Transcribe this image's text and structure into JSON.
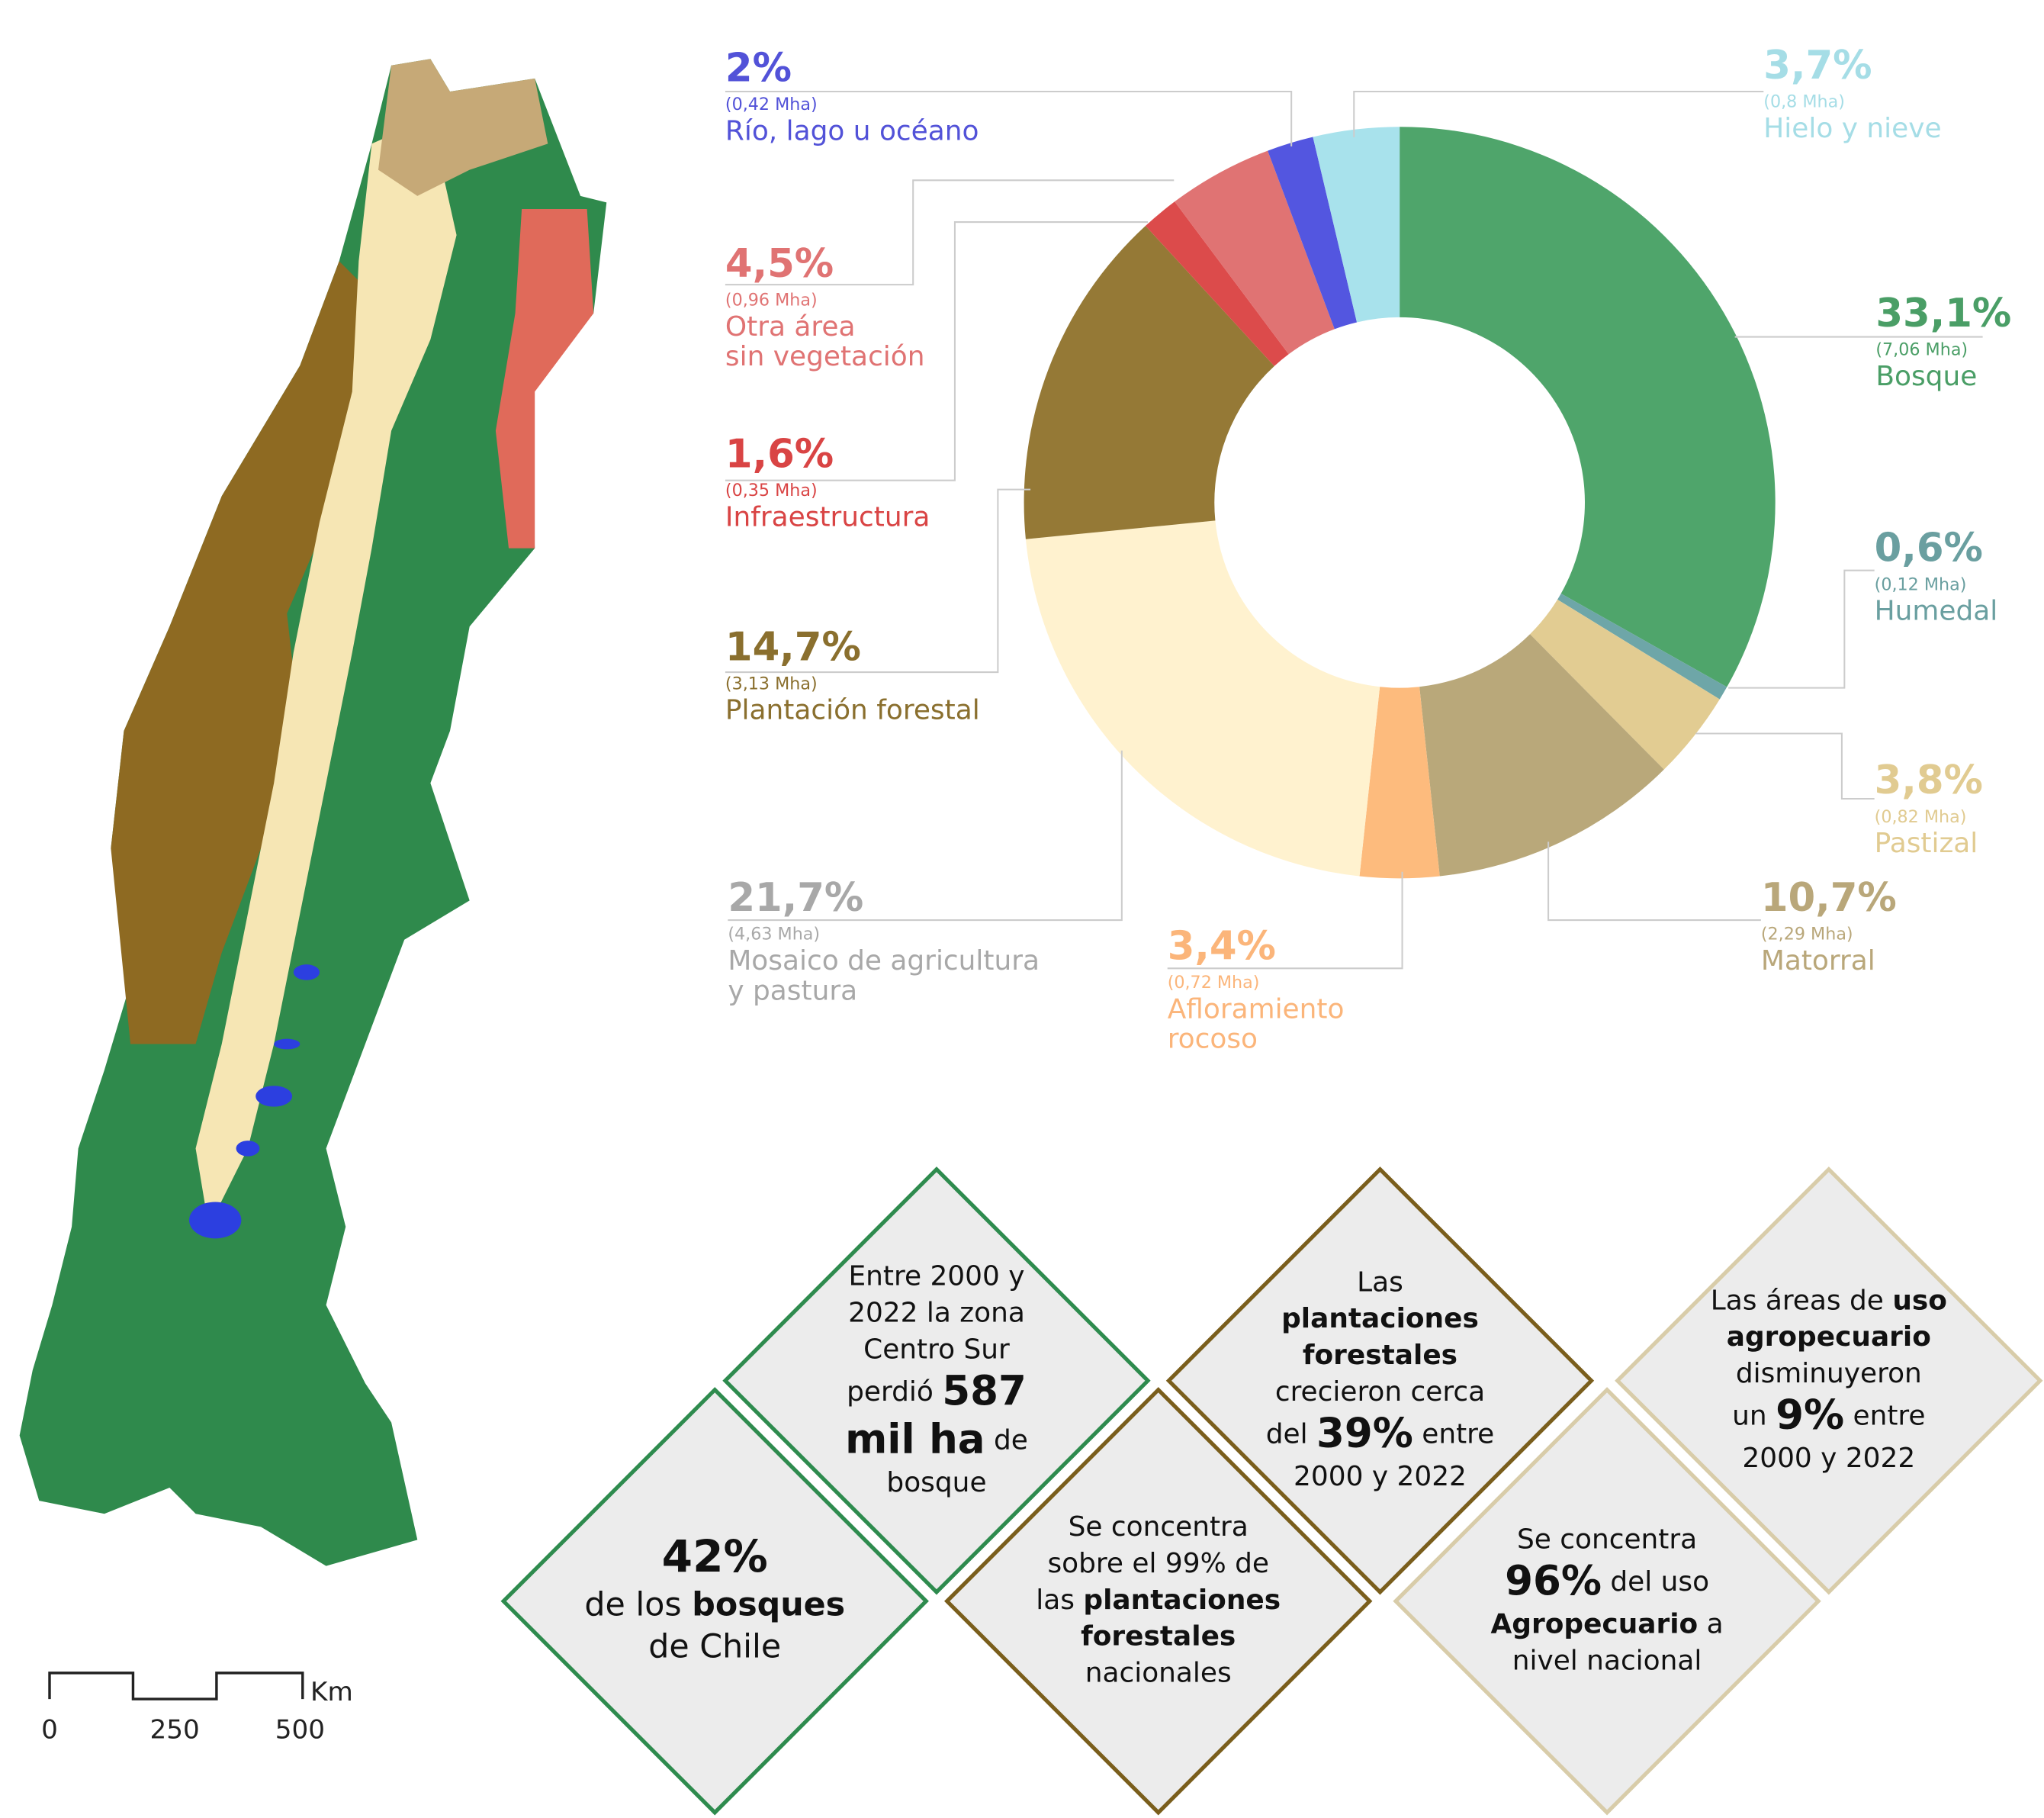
{
  "chart_data": {
    "type": "pie",
    "donut": true,
    "categories": [
      [
        "Bosque"
      ],
      [
        "Humedal"
      ],
      [
        "Pastizal"
      ],
      [
        "Matorral"
      ],
      [
        "Afloramiento",
        "rocoso"
      ],
      [
        "Mosaico de agricultura",
        "y pastura"
      ],
      [
        "Plantación forestal"
      ],
      [
        "Infraestructura"
      ],
      [
        "Otra área",
        "sin vegetación"
      ],
      [
        "Río, lago u océano"
      ],
      [
        "Hielo y nieve"
      ]
    ],
    "values": [
      33.1,
      0.6,
      3.8,
      10.7,
      3.4,
      21.7,
      14.7,
      1.6,
      4.5,
      2,
      3.7
    ],
    "value_labels": [
      "33,1%",
      "0,6%",
      "3,8%",
      "10,7%",
      "3,4%",
      "21,7%",
      "14,7%",
      "1,6%",
      "4,5%",
      "2%",
      "3,7%"
    ],
    "area_labels": [
      "(7,06 Mha)",
      "(0,12 Mha)",
      "(0,82 Mha)",
      "(2,29 Mha)",
      "(0,72 Mha)",
      "(4,63 Mha)",
      "(3,13 Mha)",
      "(0,35 Mha)",
      "(0,96 Mha)",
      "(0,42 Mha)",
      "(0,8 Mha)"
    ],
    "colors": [
      "#4fa56b",
      "#6ea6a8",
      "#e2cc92",
      "#b9a87a",
      "#fdbb7d",
      "#fff2cf",
      "#957936",
      "#dc4b4b",
      "#e07373",
      "#5356e0",
      "#a8e2ec"
    ],
    "label_colors": [
      "#4a9e66",
      "#6a9fa0",
      "#e1cb91",
      "#b9a77a",
      "#fbb57a",
      "#a8a8a8",
      "#8a6f2e",
      "#d94444",
      "#e07373",
      "#5252d8",
      "#a5dde6"
    ]
  },
  "map": {
    "scale_ticks": [
      0,
      250,
      500
    ],
    "unit": "Km"
  },
  "diamonds": [
    {
      "color": "#2e8b4e",
      "lines": [
        [
          {
            "text": "Entre 2000 y",
            "style": "regular"
          }
        ],
        [
          {
            "text": "2022 la zona",
            "style": "regular"
          }
        ],
        [
          {
            "text": "Centro Sur",
            "style": "regular"
          }
        ],
        [
          {
            "text": "perdió ",
            "style": "regular"
          },
          {
            "text": "587",
            "style": "big"
          }
        ],
        [
          {
            "text": "mil ha",
            "style": "big"
          },
          {
            "text": " de",
            "style": "regular"
          }
        ],
        [
          {
            "text": "bosque",
            "style": "regular"
          }
        ]
      ]
    },
    {
      "color": "#2e8b4e",
      "lines": [
        [
          {
            "text": "42%",
            "style": "big"
          }
        ],
        [
          {
            "text": "de los ",
            "style": "regular"
          },
          {
            "text": "bosques",
            "style": "bold"
          }
        ],
        [
          {
            "text": "de Chile",
            "style": "regular"
          }
        ]
      ]
    },
    {
      "color": "#7a5e1c",
      "lines": [
        [
          {
            "text": "Se concentra",
            "style": "regular"
          }
        ],
        [
          {
            "text": "sobre el 99% de",
            "style": "regular"
          }
        ],
        [
          {
            "text": "las ",
            "style": "regular"
          },
          {
            "text": "plantaciones",
            "style": "bold"
          }
        ],
        [
          {
            "text": "forestales",
            "style": "bold"
          }
        ],
        [
          {
            "text": "nacionales",
            "style": "regular"
          }
        ]
      ]
    },
    {
      "color": "#7a5e1c",
      "lines": [
        [
          {
            "text": "Las",
            "style": "regular"
          }
        ],
        [
          {
            "text": "plantaciones",
            "style": "bold"
          }
        ],
        [
          {
            "text": "forestales",
            "style": "bold"
          }
        ],
        [
          {
            "text": "crecieron cerca",
            "style": "regular"
          }
        ],
        [
          {
            "text": "del ",
            "style": "regular"
          },
          {
            "text": "39%",
            "style": "big"
          },
          {
            "text": " entre",
            "style": "regular"
          }
        ],
        [
          {
            "text": "2000 y 2022",
            "style": "regular"
          }
        ]
      ]
    },
    {
      "color": "#d8cca9",
      "lines": [
        [
          {
            "text": "Se concentra",
            "style": "regular"
          }
        ],
        [
          {
            "text": "96%",
            "style": "big"
          },
          {
            "text": " del uso",
            "style": "regular"
          }
        ],
        [
          {
            "text": "Agropecuario",
            "style": "bold"
          },
          {
            "text": " a",
            "style": "regular"
          }
        ],
        [
          {
            "text": "nivel nacional",
            "style": "regular"
          }
        ]
      ]
    },
    {
      "color": "#d8cca9",
      "lines": [
        [
          {
            "text": "Las áreas de ",
            "style": "regular"
          },
          {
            "text": "uso",
            "style": "bold"
          }
        ],
        [
          {
            "text": "agropecuario",
            "style": "bold"
          }
        ],
        [
          {
            "text": "disminuyeron",
            "style": "regular"
          }
        ],
        [
          {
            "text": "un ",
            "style": "regular"
          },
          {
            "text": "9%",
            "style": "big"
          },
          {
            "text": " entre",
            "style": "regular"
          }
        ],
        [
          {
            "text": "2000 y 2022",
            "style": "regular"
          }
        ]
      ]
    }
  ]
}
